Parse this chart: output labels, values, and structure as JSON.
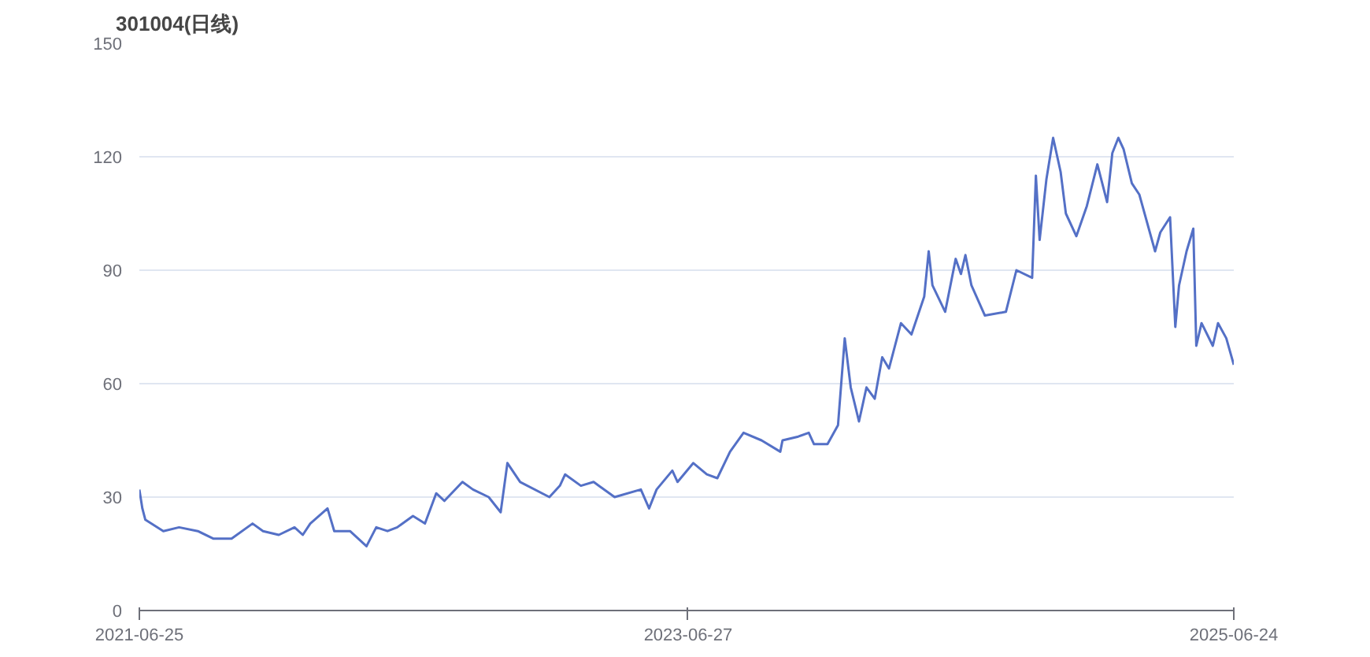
{
  "chart_data": {
    "type": "line",
    "title": "301004(日线)",
    "x": [
      "2021-06-25",
      "2021-06-29",
      "2021-07-03",
      "2021-07-27",
      "2021-08-17",
      "2021-09-11",
      "2021-10-02",
      "2021-10-26",
      "2021-11-23",
      "2021-12-07",
      "2021-12-28",
      "2022-01-18",
      "2022-01-29",
      "2022-02-08",
      "2022-03-03",
      "2022-03-12",
      "2022-04-02",
      "2022-04-24",
      "2022-05-07",
      "2022-05-22",
      "2022-06-04",
      "2022-06-25",
      "2022-07-11",
      "2022-07-26",
      "2022-08-06",
      "2022-08-30",
      "2022-09-13",
      "2022-10-04",
      "2022-10-20",
      "2022-10-29",
      "2022-11-15",
      "2022-12-24",
      "2023-01-07",
      "2023-01-14",
      "2023-02-04",
      "2023-02-21",
      "2023-03-21",
      "2023-04-25",
      "2023-05-06",
      "2023-05-16",
      "2023-06-06",
      "2023-06-13",
      "2023-07-04",
      "2023-07-22",
      "2023-08-05",
      "2023-08-22",
      "2023-09-09",
      "2023-10-03",
      "2023-10-28",
      "2023-10-31",
      "2023-11-21",
      "2023-12-05",
      "2023-12-12",
      "2023-12-30",
      "2024-01-13",
      "2024-01-22",
      "2024-01-30",
      "2024-02-10",
      "2024-02-20",
      "2024-03-02",
      "2024-03-12",
      "2024-03-21",
      "2024-04-06",
      "2024-04-20",
      "2024-05-07",
      "2024-05-13",
      "2024-05-18",
      "2024-06-04",
      "2024-06-18",
      "2024-06-25",
      "2024-07-01",
      "2024-07-09",
      "2024-07-27",
      "2024-08-24",
      "2024-09-07",
      "2024-09-28",
      "2024-10-03",
      "2024-10-08",
      "2024-10-17",
      "2024-10-26",
      "2024-11-05",
      "2024-11-12",
      "2024-11-26",
      "2024-12-10",
      "2024-12-24",
      "2025-01-06",
      "2025-01-13",
      "2025-01-21",
      "2025-01-28",
      "2025-02-08",
      "2025-02-18",
      "2025-03-11",
      "2025-03-18",
      "2025-03-31",
      "2025-04-07",
      "2025-04-12",
      "2025-04-22",
      "2025-05-01",
      "2025-05-05",
      "2025-05-12",
      "2025-05-27",
      "2025-06-03",
      "2025-06-14",
      "2025-06-24"
    ],
    "series": [
      {
        "color": "#5470c6",
        "values": [
          32,
          27,
          24,
          21,
          22,
          21,
          19,
          19,
          23,
          21,
          20,
          22,
          20,
          23,
          27,
          21,
          21,
          17,
          22,
          21,
          22,
          25,
          23,
          31,
          29,
          34,
          32,
          30,
          26,
          39,
          34,
          30,
          33,
          36,
          33,
          34,
          30,
          32,
          27,
          32,
          37,
          34,
          39,
          36,
          35,
          42,
          47,
          45,
          42,
          45,
          46,
          47,
          44,
          44,
          49,
          72,
          59,
          50,
          59,
          56,
          67,
          64,
          76,
          73,
          83,
          95,
          86,
          79,
          93,
          89,
          94,
          86,
          78,
          79,
          90,
          88,
          115,
          98,
          114,
          125,
          116,
          105,
          99,
          107,
          118,
          108,
          121,
          125,
          122,
          113,
          110,
          95,
          100,
          104,
          75,
          86,
          95,
          101,
          70,
          76,
          70,
          76,
          72,
          65
        ]
      }
    ],
    "xlim": [
      "2021-06-25",
      "2025-06-24"
    ],
    "xticks": [
      "2021-06-25",
      "2023-06-27",
      "2025-06-24"
    ],
    "ylim": [
      0,
      150
    ],
    "yticks": [
      0,
      30,
      60,
      90,
      120,
      150
    ],
    "grid": "y",
    "marker": "none",
    "line_style": "solid"
  }
}
